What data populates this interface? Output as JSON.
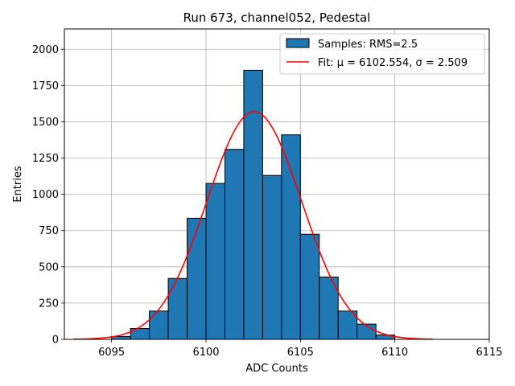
{
  "chart_data": {
    "type": "bar",
    "title": "Run 673, channel052, Pedestal",
    "xlabel": "ADC Counts",
    "ylabel": "Entries",
    "xlim": [
      6092.5,
      6115
    ],
    "ylim": [
      0,
      2140
    ],
    "xticks": [
      6095,
      6100,
      6105,
      6110,
      6115
    ],
    "yticks": [
      0,
      250,
      500,
      750,
      1000,
      1250,
      1500,
      1750,
      2000
    ],
    "grid": true,
    "legend_position": "top-right",
    "histogram": {
      "name": "Samples: RMS=2.5",
      "color": "#1f77b4",
      "edge_color": "#000000",
      "bin_edges": [
        6095,
        6096,
        6097,
        6098,
        6099,
        6100,
        6101,
        6102,
        6103,
        6104,
        6105,
        6106,
        6107,
        6108,
        6109,
        6110
      ],
      "counts": [
        20,
        75,
        195,
        420,
        835,
        1075,
        1310,
        1855,
        1130,
        1410,
        725,
        430,
        195,
        105,
        30
      ]
    },
    "fit": {
      "name": "Fit: μ = 6102.554, σ = 2.509",
      "color": "#ff0000",
      "mu": 6102.554,
      "sigma": 2.509,
      "amplitude": 1570,
      "x_range": [
        6093,
        6112
      ]
    }
  }
}
